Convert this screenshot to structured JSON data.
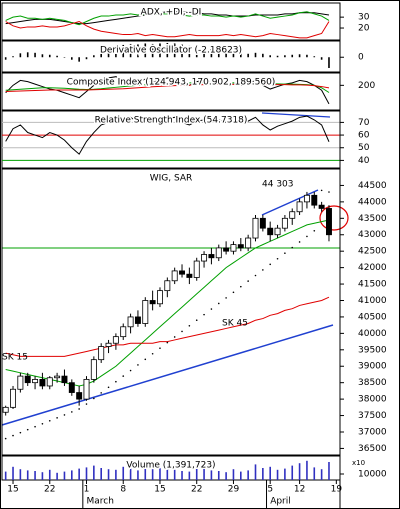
{
  "chart_data": [
    {
      "type": "line",
      "title": "ADX, +DI, -DI",
      "ylim": [
        9,
        43
      ],
      "yticks": [
        20,
        30
      ],
      "series": [
        {
          "color": "#000000",
          "values": [
            24,
            25,
            26,
            27,
            28,
            28,
            28,
            27,
            26,
            25,
            24,
            24,
            25,
            26,
            27,
            28,
            29,
            30,
            31,
            32,
            33,
            34,
            35,
            35,
            35,
            34,
            34,
            33,
            33,
            32,
            32,
            31,
            31,
            31,
            32,
            32,
            32,
            32,
            33,
            33,
            34,
            34,
            34,
            33,
            32,
            null
          ]
        },
        {
          "color": "#00a000",
          "values": [
            27,
            30,
            31,
            29,
            29,
            28,
            29,
            28,
            27,
            25,
            23,
            26,
            29,
            31,
            31,
            32,
            32,
            33,
            32,
            33,
            32,
            33,
            33,
            34,
            32,
            31,
            32,
            32,
            31,
            31,
            30,
            31,
            30,
            31,
            33,
            31,
            29,
            30,
            31,
            32,
            34,
            35,
            33,
            31,
            27,
            null
          ]
        },
        {
          "color": "#e00000",
          "values": [
            26,
            22,
            20,
            21,
            21,
            22,
            21,
            21,
            22,
            24,
            26,
            22,
            19,
            17,
            16,
            15,
            14,
            14,
            15,
            13,
            14,
            13,
            12,
            12,
            13,
            14,
            13,
            13,
            13,
            13,
            14,
            13,
            14,
            13,
            12,
            13,
            15,
            14,
            13,
            12,
            11,
            11,
            13,
            15,
            26,
            null
          ]
        }
      ]
    },
    {
      "type": "bar",
      "title": "Derivative Oscillator (-2.18623)",
      "ylim": [
        -3,
        3.3
      ],
      "yticks": [
        0
      ],
      "color": "#000000",
      "values": [
        -0.5,
        0.2,
        0.8,
        1.0,
        0.9,
        0.6,
        0.5,
        0.3,
        -0.1,
        -0.5,
        -0.9,
        -0.4,
        0.4,
        1.2,
        1.8,
        2.2,
        2.5,
        2.7,
        2.6,
        2.8,
        2.7,
        2.8,
        2.9,
        2.8,
        2.6,
        2.3,
        2.2,
        2.0,
        1.8,
        1.5,
        1.2,
        1.0,
        0.8,
        0.7,
        0.9,
        0.7,
        0.4,
        0.3,
        0.4,
        0.5,
        0.6,
        0.5,
        0.2,
        -0.5,
        -2.18623,
        null
      ]
    },
    {
      "type": "line",
      "title": "Composite Index (124.943, 170.902, 189.560)",
      "ylim": [
        100,
        250
      ],
      "yticks": [
        200
      ],
      "series": [
        {
          "color": "#000000",
          "values": [
            170,
            200,
            220,
            215,
            205,
            195,
            185,
            180,
            170,
            160,
            150,
            175,
            200,
            225,
            230,
            235,
            225,
            220,
            215,
            225,
            215,
            220,
            230,
            225,
            210,
            200,
            215,
            220,
            210,
            215,
            205,
            210,
            200,
            205,
            220,
            200,
            185,
            195,
            205,
            210,
            220,
            215,
            200,
            180,
            124.943,
            null
          ]
        },
        {
          "color": "#00a000",
          "values": [
            180,
            182,
            184,
            186,
            188,
            190,
            190,
            189,
            188,
            186,
            184,
            183,
            184,
            186,
            189,
            192,
            195,
            198,
            200,
            202,
            204,
            206,
            208,
            209,
            210,
            210,
            210,
            211,
            211,
            211,
            211,
            210,
            210,
            209,
            209,
            208,
            207,
            206,
            205,
            205,
            204,
            203,
            200,
            190,
            170.902,
            null
          ]
        },
        {
          "color": "#e00000",
          "values": [
            175,
            176,
            177,
            178,
            179,
            180,
            181,
            181,
            181,
            181,
            181,
            181,
            182,
            183,
            184,
            185,
            186,
            188,
            190,
            192,
            194,
            196,
            198,
            199,
            200,
            201,
            202,
            203,
            203,
            204,
            204,
            204,
            204,
            204,
            204,
            204,
            203,
            203,
            203,
            202,
            202,
            201,
            199,
            195,
            189.56,
            null
          ]
        }
      ]
    },
    {
      "type": "line",
      "title": "Relative Strength Index (54.7318)",
      "ylim": [
        34,
        79
      ],
      "yticks": [
        40,
        50,
        60,
        70
      ],
      "grid_colors": [
        "#00a000",
        "#bbbbbb",
        "#e00000",
        "#bbbbbb"
      ],
      "series": [
        {
          "color": "#000000",
          "values": [
            55,
            65,
            68,
            62,
            60,
            58,
            62,
            60,
            56,
            50,
            45,
            55,
            62,
            68,
            70,
            71,
            72,
            74,
            70,
            73,
            70,
            72,
            73,
            74,
            70,
            68,
            71,
            72,
            70,
            72,
            70,
            71,
            70,
            71,
            74,
            68,
            64,
            67,
            69,
            71,
            74,
            75,
            72,
            68,
            54.7318,
            null
          ]
        }
      ]
    },
    {
      "type": "candlestick",
      "title": "WIG, SAR",
      "ylim": [
        36300,
        45000
      ],
      "yticks": [
        36500,
        37000,
        37500,
        38000,
        38500,
        39000,
        39500,
        40000,
        40500,
        41000,
        41500,
        42000,
        42500,
        43000,
        43500,
        44000,
        44500
      ],
      "categories": [
        null,
        "15",
        null,
        null,
        null,
        null,
        "22",
        null,
        null,
        null,
        null,
        "1",
        null,
        null,
        null,
        null,
        "8",
        null,
        null,
        null,
        null,
        "15",
        null,
        null,
        null,
        null,
        "22",
        null,
        null,
        null,
        null,
        "29",
        null,
        null,
        null,
        null,
        "5",
        null,
        null,
        null,
        "12",
        null,
        null,
        null,
        null,
        "19"
      ],
      "months": [
        null,
        null,
        null,
        null,
        null,
        null,
        null,
        null,
        null,
        null,
        null,
        "March",
        null,
        null,
        null,
        null,
        null,
        null,
        null,
        null,
        null,
        null,
        null,
        null,
        null,
        null,
        null,
        null,
        null,
        null,
        null,
        null,
        null,
        null,
        null,
        null,
        "April",
        null,
        null,
        null,
        null,
        null,
        null,
        null,
        null,
        null
      ],
      "open": [
        37600,
        37750,
        38300,
        38700,
        38500,
        38600,
        38400,
        38650,
        38700,
        38500,
        38200,
        38000,
        38600,
        39200,
        39600,
        39700,
        39900,
        40200,
        40500,
        40300,
        41000,
        40900,
        41300,
        41600,
        41900,
        41800,
        41700,
        42200,
        42400,
        42300,
        42600,
        42500,
        42700,
        42600,
        42900,
        43500,
        43200,
        43000,
        43200,
        43500,
        43700,
        44000,
        44200,
        43900,
        43800,
        null
      ],
      "high": [
        37800,
        38400,
        38800,
        38800,
        38700,
        38800,
        38700,
        38800,
        38900,
        38600,
        38400,
        38700,
        39300,
        39700,
        39800,
        40000,
        40300,
        40600,
        40700,
        41100,
        41300,
        41400,
        41700,
        42000,
        42100,
        42000,
        42300,
        42500,
        42600,
        42700,
        42800,
        42800,
        42900,
        43000,
        43600,
        43600,
        43400,
        43300,
        43600,
        43800,
        44100,
        44303,
        44300,
        44000,
        43900,
        null
      ],
      "low": [
        37500,
        37700,
        38200,
        38400,
        38300,
        38300,
        38300,
        38500,
        38400,
        38100,
        37800,
        37950,
        38500,
        39100,
        39400,
        39500,
        39800,
        40000,
        40200,
        40200,
        40700,
        40800,
        41100,
        41500,
        41700,
        41500,
        41600,
        42000,
        42100,
        42200,
        42400,
        42400,
        42500,
        42500,
        42800,
        43100,
        42800,
        42900,
        43100,
        43300,
        43600,
        43800,
        43800,
        43700,
        42800,
        null
      ],
      "close": [
        37750,
        38300,
        38700,
        38500,
        38600,
        38400,
        38650,
        38700,
        38500,
        38200,
        38000,
        38600,
        39200,
        39600,
        39700,
        39900,
        40200,
        40500,
        40300,
        41000,
        40900,
        41300,
        41600,
        41900,
        41800,
        41700,
        42200,
        42400,
        42300,
        42600,
        42500,
        42700,
        42600,
        42900,
        43500,
        43200,
        43000,
        43200,
        43500,
        43700,
        44000,
        44200,
        43900,
        43800,
        43000,
        null
      ],
      "series": [
        {
          "color": "#00a000",
          "style": "line",
          "values": [
            38900,
            38850,
            38800,
            38750,
            38700,
            38650,
            38600,
            38550,
            38500,
            38450,
            38400,
            38450,
            38550,
            38700,
            38850,
            39000,
            39200,
            39400,
            39600,
            39800,
            40000,
            40200,
            40400,
            40600,
            40800,
            41000,
            41200,
            41400,
            41600,
            41800,
            42000,
            42150,
            42300,
            42450,
            42600,
            42700,
            42800,
            42900,
            43000,
            43100,
            43200,
            43300,
            43350,
            43400,
            43450,
            null
          ]
        },
        {
          "color": "#e00000",
          "style": "line",
          "values": [
            39400,
            39350,
            39300,
            39300,
            39300,
            39300,
            39300,
            39300,
            39300,
            39350,
            39400,
            39450,
            39500,
            39550,
            39600,
            39650,
            39650,
            39700,
            39700,
            39700,
            39700,
            39750,
            39750,
            39800,
            39850,
            39900,
            39950,
            40000,
            40050,
            40100,
            40150,
            40200,
            40250,
            40300,
            40400,
            40450,
            40550,
            40600,
            40700,
            40750,
            40850,
            40900,
            40950,
            41000,
            41100,
            null
          ]
        },
        {
          "color": "#000000",
          "style": "dots",
          "values": [
            36800,
            36890,
            36980,
            37070,
            37160,
            37250,
            37340,
            37430,
            37520,
            37610,
            37700,
            37850,
            38020,
            38190,
            38360,
            38530,
            38700,
            38870,
            39040,
            39210,
            39380,
            39550,
            39720,
            39890,
            40060,
            40230,
            40400,
            40570,
            40740,
            40910,
            41080,
            41250,
            41420,
            41590,
            41760,
            41930,
            42100,
            42270,
            42440,
            42610,
            42780,
            42950,
            43120,
            44350,
            44300,
            null
          ]
        }
      ],
      "annotations": [
        "44 303",
        "SK 45",
        "SK 15"
      ],
      "annotation_colors": [
        "#00a000",
        "#e00000",
        "#00a000"
      ]
    },
    {
      "type": "bar",
      "title": "Volume (1,391,723)",
      "ylim": [
        0,
        40000
      ],
      "yticks": [
        10000
      ],
      "unit_label": "x10",
      "color": "#3030c0",
      "values": [
        14000,
        22000,
        18000,
        16000,
        15000,
        13000,
        17000,
        12000,
        14000,
        16000,
        19000,
        21000,
        24000,
        20000,
        18000,
        17000,
        22000,
        19000,
        16000,
        25000,
        18000,
        20000,
        23000,
        17000,
        15000,
        14000,
        21000,
        19000,
        16000,
        15000,
        13000,
        18000,
        14000,
        16000,
        26000,
        20000,
        22000,
        17000,
        19000,
        24000,
        28000,
        32000,
        21000,
        18000,
        30000,
        null
      ]
    }
  ]
}
